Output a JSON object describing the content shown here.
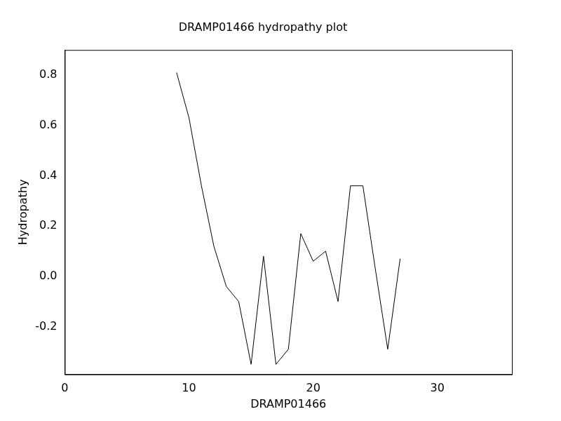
{
  "chart_data": {
    "type": "line",
    "title": "DRAMP01466 hydropathy plot",
    "x_label": "DRAMP01466",
    "y_label": "Hydropathy",
    "x": [
      9,
      10,
      11,
      12,
      13,
      14,
      15,
      16,
      17,
      18,
      19,
      20,
      21,
      22,
      23,
      24,
      25,
      26,
      27
    ],
    "values": [
      0.81,
      0.63,
      0.36,
      0.12,
      -0.04,
      -0.1,
      -0.35,
      0.08,
      -0.35,
      -0.29,
      0.17,
      0.06,
      0.1,
      -0.1,
      0.36,
      0.36,
      0.03,
      -0.29,
      0.07
    ],
    "color": "#000000",
    "xlim": [
      0,
      36
    ],
    "xticks": [
      0,
      10,
      20,
      30
    ],
    "ylim": [
      -0.39,
      0.9
    ],
    "yticks": [
      -0.2,
      {
        "value": 0,
        "label": "0.0"
      },
      0.2,
      0.4,
      0.6,
      0.8
    ],
    "grid": false
  }
}
